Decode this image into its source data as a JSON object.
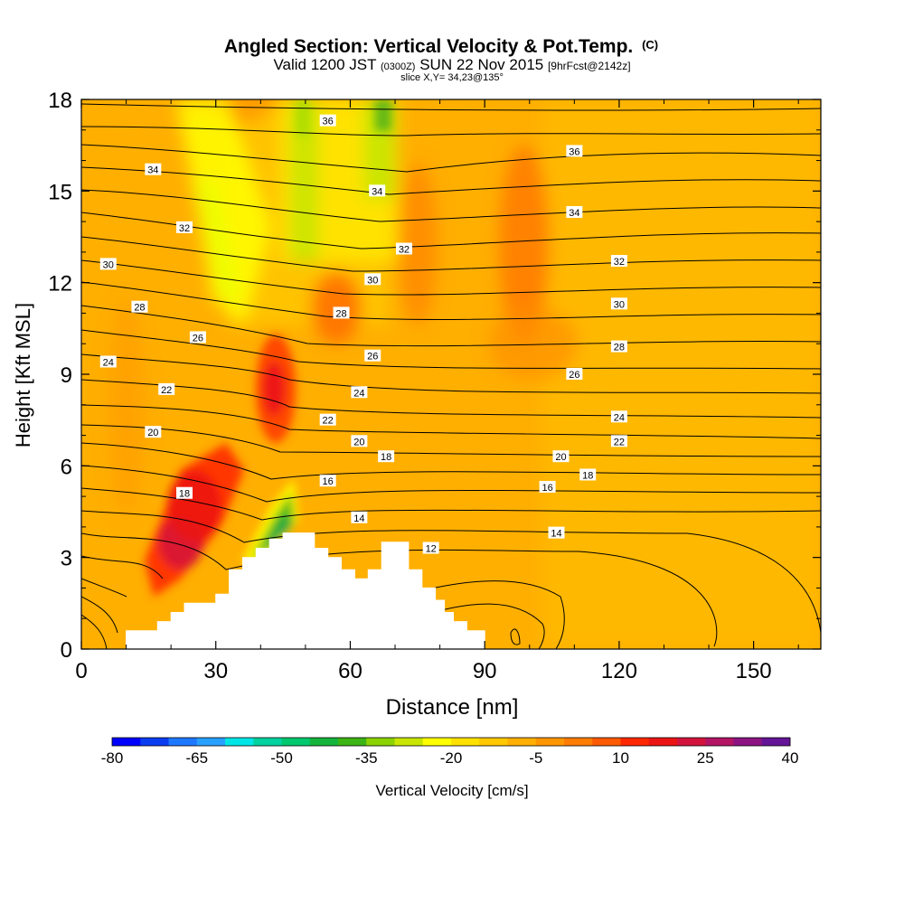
{
  "chart_data": {
    "type": "heatmap",
    "title": "Angled Section: Vertical Velocity & Pot.Temp.",
    "title_units": "(C)",
    "subtitle": {
      "valid": "Valid 1200 JST",
      "zulu": "(0300Z)",
      "date": "SUN 22 Nov 2015",
      "forecast": "[9hrFcst@2142z]"
    },
    "slice": "slice X,Y= 34,23@135°",
    "xlabel": "Distance [nm]",
    "ylabel": "Height [Kft MSL]",
    "xlim": [
      0,
      165
    ],
    "ylim": [
      0,
      18
    ],
    "x_ticks": [
      "0",
      "30",
      "60",
      "90",
      "120",
      "150"
    ],
    "y_ticks": [
      "0",
      "3",
      "6",
      "9",
      "12",
      "15",
      "18"
    ],
    "colorbar": {
      "label": "Vertical Velocity [cm/s]",
      "ticks": [
        "-80",
        "-65",
        "-50",
        "-35",
        "-20",
        "-5",
        "10",
        "25",
        "40"
      ],
      "colors": [
        "#0000ff",
        "#0a3cf0",
        "#1e78ff",
        "#28a0ff",
        "#00e6e6",
        "#00d2a0",
        "#00c86e",
        "#14b43c",
        "#3cb414",
        "#8cd200",
        "#c8e600",
        "#ffff00",
        "#ffe100",
        "#ffc800",
        "#ffaf00",
        "#ff9600",
        "#ff7d00",
        "#ff5a00",
        "#ff2800",
        "#eb1414",
        "#d2143c",
        "#b41464",
        "#8c1482",
        "#641496"
      ]
    },
    "isentrope_labels": [
      {
        "v": "36",
        "x": 55,
        "y": 17.3
      },
      {
        "v": "36",
        "x": 110,
        "y": 16.3
      },
      {
        "v": "34",
        "x": 16,
        "y": 15.7
      },
      {
        "v": "34",
        "x": 66,
        "y": 15.0
      },
      {
        "v": "34",
        "x": 110,
        "y": 14.3
      },
      {
        "v": "32",
        "x": 23,
        "y": 13.8
      },
      {
        "v": "32",
        "x": 72,
        "y": 13.1
      },
      {
        "v": "32",
        "x": 120,
        "y": 12.7
      },
      {
        "v": "30",
        "x": 6,
        "y": 12.6
      },
      {
        "v": "30",
        "x": 65,
        "y": 12.1
      },
      {
        "v": "30",
        "x": 120,
        "y": 11.3
      },
      {
        "v": "28",
        "x": 13,
        "y": 11.2
      },
      {
        "v": "28",
        "x": 58,
        "y": 11.0
      },
      {
        "v": "28",
        "x": 120,
        "y": 9.9
      },
      {
        "v": "26",
        "x": 26,
        "y": 10.2
      },
      {
        "v": "26",
        "x": 65,
        "y": 9.6
      },
      {
        "v": "26",
        "x": 110,
        "y": 9.0
      },
      {
        "v": "24",
        "x": 6,
        "y": 9.4
      },
      {
        "v": "24",
        "x": 62,
        "y": 8.4
      },
      {
        "v": "24",
        "x": 120,
        "y": 7.6
      },
      {
        "v": "22",
        "x": 19,
        "y": 8.5
      },
      {
        "v": "22",
        "x": 55,
        "y": 7.5
      },
      {
        "v": "22",
        "x": 120,
        "y": 6.8
      },
      {
        "v": "20",
        "x": 16,
        "y": 7.1
      },
      {
        "v": "20",
        "x": 62,
        "y": 6.8
      },
      {
        "v": "20",
        "x": 107,
        "y": 6.3
      },
      {
        "v": "18",
        "x": 23,
        "y": 5.1
      },
      {
        "v": "18",
        "x": 68,
        "y": 6.3
      },
      {
        "v": "18",
        "x": 113,
        "y": 5.7
      },
      {
        "v": "16",
        "x": 55,
        "y": 5.5
      },
      {
        "v": "16",
        "x": 104,
        "y": 5.3
      },
      {
        "v": "14",
        "x": 62,
        "y": 4.3
      },
      {
        "v": "14",
        "x": 106,
        "y": 3.8
      },
      {
        "v": "12",
        "x": 78,
        "y": 3.3
      }
    ],
    "terrain_profile": [
      [
        10,
        0.3
      ],
      [
        10,
        0.6
      ],
      [
        17,
        0.6
      ],
      [
        17,
        0.9
      ],
      [
        20,
        0.9
      ],
      [
        20,
        1.2
      ],
      [
        23,
        1.2
      ],
      [
        23,
        1.5
      ],
      [
        30,
        1.5
      ],
      [
        30,
        1.8
      ],
      [
        33,
        1.8
      ],
      [
        33,
        2.6
      ],
      [
        36,
        2.6
      ],
      [
        36,
        3.0
      ],
      [
        39,
        3.0
      ],
      [
        39,
        3.3
      ],
      [
        42,
        3.3
      ],
      [
        42,
        3.6
      ],
      [
        45,
        3.6
      ],
      [
        45,
        3.8
      ],
      [
        52,
        3.8
      ],
      [
        52,
        3.3
      ],
      [
        55,
        3.3
      ],
      [
        55,
        3.0
      ],
      [
        58,
        3.0
      ],
      [
        58,
        2.6
      ],
      [
        61,
        2.6
      ],
      [
        61,
        2.3
      ],
      [
        64,
        2.3
      ],
      [
        64,
        2.6
      ],
      [
        67,
        2.6
      ],
      [
        67,
        3.5
      ],
      [
        73,
        3.5
      ],
      [
        73,
        2.6
      ],
      [
        76,
        2.6
      ],
      [
        76,
        2.0
      ],
      [
        79,
        2.0
      ],
      [
        79,
        1.6
      ],
      [
        81,
        1.6
      ],
      [
        81,
        1.2
      ],
      [
        83,
        1.2
      ],
      [
        83,
        0.9
      ],
      [
        86,
        0.9
      ],
      [
        86,
        0.6
      ],
      [
        90,
        0.6
      ],
      [
        90,
        0.3
      ]
    ]
  }
}
